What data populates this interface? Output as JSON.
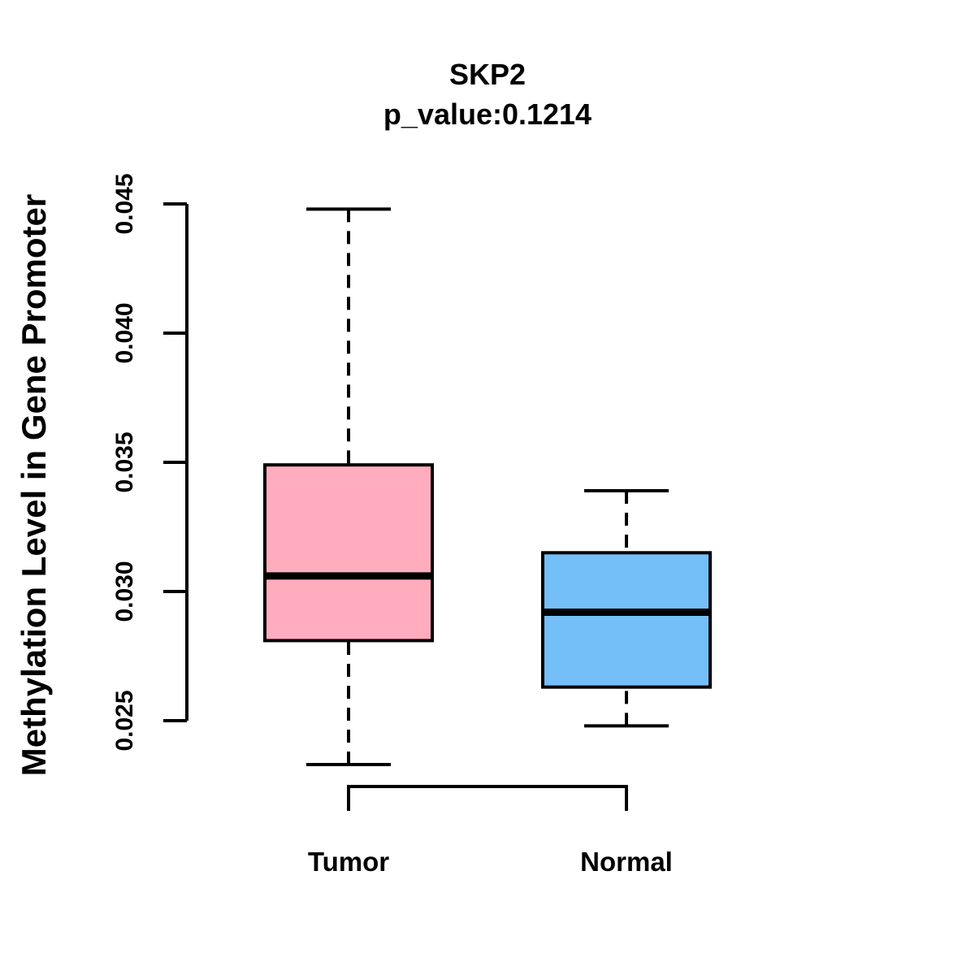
{
  "title": {
    "line1": "SKP2",
    "line2": "p_value:0.1214"
  },
  "colors": {
    "tumor_fill": "#FFACBF",
    "normal_fill": "#74BFF8",
    "ink": "#000000",
    "background": "#FFFFFF"
  },
  "chart_data": {
    "type": "boxplot",
    "title": "SKP2",
    "subtitle": "p_value:0.1214",
    "xlabel": "",
    "ylabel": "Methylation Level in Gene Promoter",
    "ylim": [
      0.025,
      0.045
    ],
    "yticks": [
      0.045,
      0.04,
      0.035,
      0.03,
      0.025
    ],
    "ytick_labels": [
      "0.045",
      "0.040",
      "0.035",
      "0.030",
      "0.025"
    ],
    "ytick_label_rotation": 90,
    "grid": false,
    "legend": false,
    "whisker_style": "dashed",
    "categories": [
      "Tumor",
      "Normal"
    ],
    "series": [
      {
        "name": "Tumor",
        "min": 0.0233,
        "q1": 0.0281,
        "median": 0.0306,
        "q3": 0.0349,
        "max": 0.0448,
        "color": "#FFACBF"
      },
      {
        "name": "Normal",
        "min": 0.0248,
        "q1": 0.0263,
        "median": 0.0292,
        "q3": 0.0315,
        "max": 0.0339,
        "color": "#74BFF8"
      }
    ],
    "comparison_bracket": {
      "from": "Tumor",
      "to": "Normal"
    }
  }
}
